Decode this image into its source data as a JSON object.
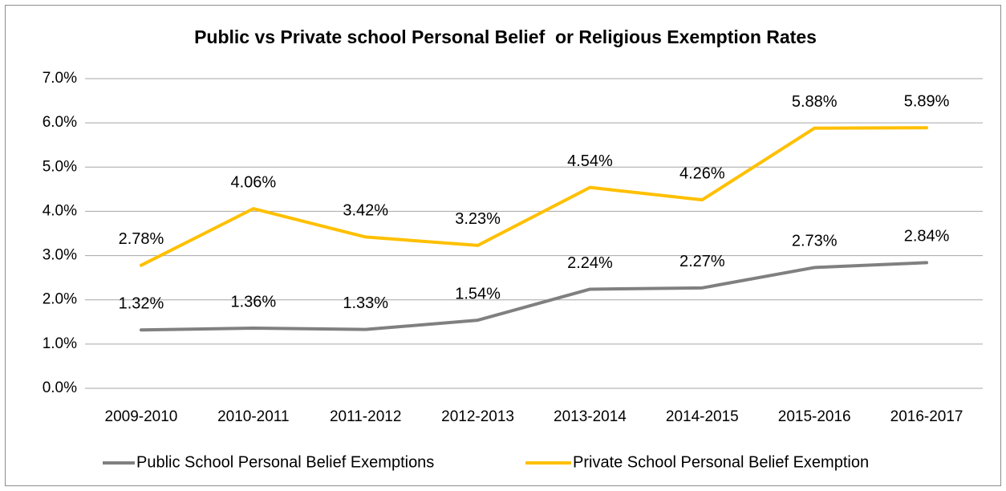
{
  "chart_data": {
    "type": "line",
    "title": "Public vs Private school Personal Belief  or Religious Exemption Rates",
    "categories": [
      "2009-2010",
      "2010-2011",
      "2011-2012",
      "2012-2013",
      "2013-2014",
      "2014-2015",
      "2015-2016",
      "2016-2017"
    ],
    "series": [
      {
        "name": "Public School Personal Belief Exemptions",
        "color": "#808080",
        "values": [
          1.32,
          1.36,
          1.33,
          1.54,
          2.24,
          2.27,
          2.73,
          2.84
        ],
        "value_labels": [
          "1.32%",
          "1.36%",
          "1.33%",
          "1.54%",
          "2.24%",
          "2.27%",
          "2.73%",
          "2.84%"
        ]
      },
      {
        "name": "Private School Personal Belief Exemption",
        "color": "#FFC000",
        "values": [
          2.78,
          4.06,
          3.42,
          3.23,
          4.54,
          4.26,
          5.88,
          5.89
        ],
        "value_labels": [
          "2.78%",
          "4.06%",
          "3.42%",
          "3.23%",
          "4.54%",
          "4.26%",
          "5.88%",
          "5.89%"
        ]
      }
    ],
    "ylim": [
      0,
      7
    ],
    "yticks": [
      {
        "value": 0,
        "label": "0.0%"
      },
      {
        "value": 1,
        "label": "1.0%"
      },
      {
        "value": 2,
        "label": "2.0%"
      },
      {
        "value": 3,
        "label": "3.0%"
      },
      {
        "value": 4,
        "label": "4.0%"
      },
      {
        "value": 5,
        "label": "5.0%"
      },
      {
        "value": 6,
        "label": "6.0%"
      },
      {
        "value": 7,
        "label": "7.0%"
      }
    ],
    "grid": true,
    "legend": "bottom"
  }
}
